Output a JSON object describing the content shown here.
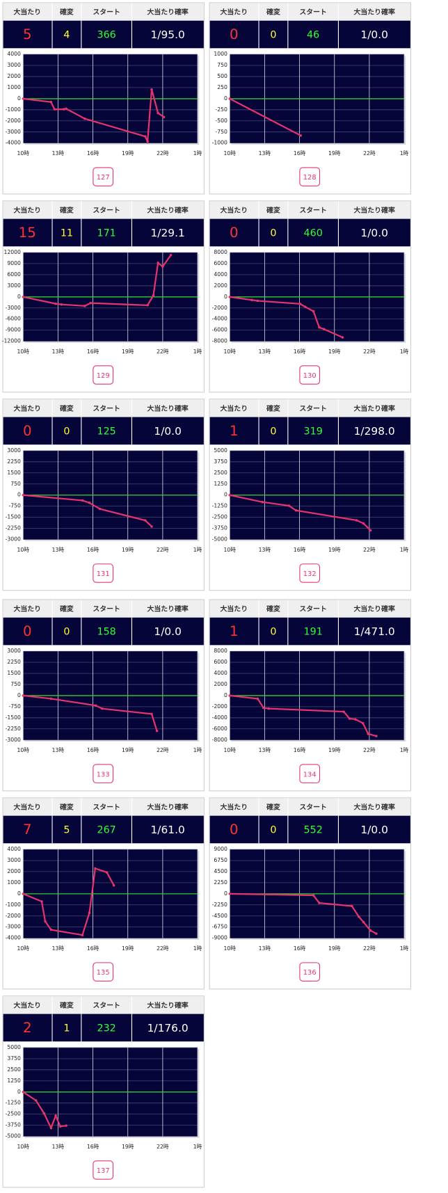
{
  "headers": [
    "大当たり",
    "確変",
    "スタート",
    "大当たり確率"
  ],
  "panels": [
    {
      "stats": [
        "5",
        "4",
        "366",
        "1/95.0"
      ],
      "machine": "127"
    },
    {
      "stats": [
        "0",
        "0",
        "46",
        "1/0.0"
      ],
      "machine": "128"
    },
    {
      "stats": [
        "15",
        "11",
        "171",
        "1/29.1"
      ],
      "machine": "129"
    },
    {
      "stats": [
        "0",
        "0",
        "460",
        "1/0.0"
      ],
      "machine": "130"
    },
    {
      "stats": [
        "0",
        "0",
        "125",
        "1/0.0"
      ],
      "machine": "131"
    },
    {
      "stats": [
        "1",
        "0",
        "319",
        "1/298.0"
      ],
      "machine": "132"
    },
    {
      "stats": [
        "0",
        "0",
        "158",
        "1/0.0"
      ],
      "machine": "133"
    },
    {
      "stats": [
        "1",
        "0",
        "191",
        "1/471.0"
      ],
      "machine": "134"
    },
    {
      "stats": [
        "7",
        "5",
        "267",
        "1/61.0"
      ],
      "machine": "135"
    },
    {
      "stats": [
        "0",
        "0",
        "552",
        "1/0.0"
      ],
      "machine": "136"
    },
    {
      "stats": [
        "2",
        "1",
        "232",
        "1/176.0"
      ],
      "machine": "137"
    }
  ],
  "chart_data": [
    {
      "type": "line",
      "x": [
        10,
        12.4,
        12.7,
        13.5,
        13.7,
        15.3,
        20.5,
        20.7,
        21.05,
        21.6,
        22.1
      ],
      "values": [
        0,
        -300,
        -950,
        -950,
        -900,
        -1800,
        -3400,
        -3850,
        830,
        -1300,
        -1650
      ],
      "color": "#e8336d",
      "zero_line": "#33cc33",
      "xlim": [
        10,
        25
      ],
      "ylim": [
        -4000,
        4000
      ],
      "xticks": [
        {
          "value": 10,
          "label": "10時"
        },
        {
          "value": 13,
          "label": "13時"
        },
        {
          "value": 16,
          "label": "16時"
        },
        {
          "value": 19,
          "label": "19時"
        },
        {
          "value": 22,
          "label": "22時"
        },
        {
          "value": 25,
          "label": "1時"
        }
      ],
      "yticks": [
        4000,
        3000,
        2000,
        1000,
        0,
        -1000,
        -2000,
        -3000,
        -4000
      ],
      "grid": true
    },
    {
      "type": "line",
      "x": [
        10,
        16.1
      ],
      "values": [
        0,
        -830
      ],
      "color": "#e8336d",
      "zero_line": "#33cc33",
      "xlim": [
        10,
        25
      ],
      "ylim": [
        -1000,
        1000
      ],
      "xticks": [
        {
          "value": 10,
          "label": "10時"
        },
        {
          "value": 13,
          "label": "13時"
        },
        {
          "value": 16,
          "label": "16時"
        },
        {
          "value": 19,
          "label": "19時"
        },
        {
          "value": 22,
          "label": "22時"
        },
        {
          "value": 25,
          "label": "1時"
        }
      ],
      "yticks": [
        1000,
        750,
        500,
        250,
        0,
        -250,
        -500,
        -750,
        -1000
      ],
      "grid": true
    },
    {
      "type": "line",
      "x": [
        10,
        12.8,
        13.3,
        15.3,
        15.8,
        20.7,
        21.2,
        21.6,
        22.0,
        22.7
      ],
      "values": [
        0,
        -1850,
        -2050,
        -2450,
        -1650,
        -2250,
        400,
        9200,
        8200,
        11300
      ],
      "color": "#e8336d",
      "zero_line": "#33cc33",
      "xlim": [
        10,
        25
      ],
      "ylim": [
        -12000,
        12000
      ],
      "xticks": [
        {
          "value": 10,
          "label": "10時"
        },
        {
          "value": 13,
          "label": "13時"
        },
        {
          "value": 16,
          "label": "16時"
        },
        {
          "value": 19,
          "label": "19時"
        },
        {
          "value": 22,
          "label": "22時"
        },
        {
          "value": 25,
          "label": "1時"
        }
      ],
      "yticks": [
        12000,
        9000,
        6000,
        3000,
        0,
        -3000,
        -6000,
        -9000,
        -12000
      ],
      "grid": true
    },
    {
      "type": "line",
      "x": [
        10,
        11.9,
        12.4,
        16.05,
        16.5,
        17.2,
        17.7,
        18.1,
        19.7
      ],
      "values": [
        0,
        -550,
        -700,
        -1250,
        -1800,
        -2600,
        -5500,
        -5800,
        -7300
      ],
      "color": "#e8336d",
      "zero_line": "#33cc33",
      "xlim": [
        10,
        25
      ],
      "ylim": [
        -8000,
        8000
      ],
      "xticks": [
        {
          "value": 10,
          "label": "10時"
        },
        {
          "value": 13,
          "label": "13時"
        },
        {
          "value": 16,
          "label": "16時"
        },
        {
          "value": 19,
          "label": "19時"
        },
        {
          "value": 22,
          "label": "22時"
        },
        {
          "value": 25,
          "label": "1時"
        }
      ],
      "yticks": [
        8000,
        6000,
        4000,
        2000,
        0,
        -2000,
        -4000,
        -6000,
        -8000
      ],
      "grid": true
    },
    {
      "type": "line",
      "x": [
        10,
        15.1,
        15.7,
        16.6,
        20.5,
        21.05
      ],
      "values": [
        0,
        -360,
        -520,
        -930,
        -1710,
        -2120
      ],
      "color": "#e8336d",
      "zero_line": "#33cc33",
      "xlim": [
        10,
        25
      ],
      "ylim": [
        -3000,
        3000
      ],
      "xticks": [
        {
          "value": 10,
          "label": "10時"
        },
        {
          "value": 13,
          "label": "13時"
        },
        {
          "value": 16,
          "label": "16時"
        },
        {
          "value": 19,
          "label": "19時"
        },
        {
          "value": 22,
          "label": "22時"
        },
        {
          "value": 25,
          "label": "1時"
        }
      ],
      "yticks": [
        3000,
        2250,
        1500,
        750,
        0,
        -750,
        -1500,
        -2250,
        -3000
      ],
      "grid": true
    },
    {
      "type": "line",
      "x": [
        10,
        12.8,
        15.1,
        15.7,
        20.9,
        21.5,
        22.1
      ],
      "values": [
        0,
        -780,
        -1200,
        -1720,
        -2840,
        -3190,
        -3970
      ],
      "color": "#e8336d",
      "zero_line": "#33cc33",
      "xlim": [
        10,
        25
      ],
      "ylim": [
        -5000,
        5000
      ],
      "xticks": [
        {
          "value": 10,
          "label": "10時"
        },
        {
          "value": 13,
          "label": "13時"
        },
        {
          "value": 16,
          "label": "16時"
        },
        {
          "value": 19,
          "label": "19時"
        },
        {
          "value": 22,
          "label": "22時"
        },
        {
          "value": 25,
          "label": "1時"
        }
      ],
      "yticks": [
        5000,
        3750,
        2500,
        1250,
        0,
        -1250,
        -2500,
        -3750,
        -5000
      ],
      "grid": true
    },
    {
      "type": "line",
      "x": [
        10,
        12.4,
        16.25,
        16.8,
        21.05,
        21.5
      ],
      "values": [
        0,
        -210,
        -670,
        -880,
        -1240,
        -2380
      ],
      "color": "#e8336d",
      "zero_line": "#33cc33",
      "xlim": [
        10,
        25
      ],
      "ylim": [
        -3000,
        3000
      ],
      "xticks": [
        {
          "value": 10,
          "label": "10時"
        },
        {
          "value": 13,
          "label": "13時"
        },
        {
          "value": 16,
          "label": "16時"
        },
        {
          "value": 19,
          "label": "19時"
        },
        {
          "value": 22,
          "label": "22時"
        },
        {
          "value": 25,
          "label": "1時"
        }
      ],
      "yticks": [
        3000,
        2250,
        1500,
        750,
        0,
        -750,
        -1500,
        -2250,
        -3000
      ],
      "grid": true
    },
    {
      "type": "line",
      "x": [
        10,
        12.4,
        12.9,
        13.35,
        19.8,
        20.3,
        20.8,
        21.45,
        21.9,
        22.6
      ],
      "values": [
        0,
        -550,
        -2200,
        -2340,
        -2900,
        -4140,
        -4280,
        -4970,
        -6900,
        -7300
      ],
      "color": "#e8336d",
      "zero_line": "#33cc33",
      "xlim": [
        10,
        25
      ],
      "ylim": [
        -8000,
        8000
      ],
      "xticks": [
        {
          "value": 10,
          "label": "10時"
        },
        {
          "value": 13,
          "label": "13時"
        },
        {
          "value": 16,
          "label": "16時"
        },
        {
          "value": 19,
          "label": "19時"
        },
        {
          "value": 22,
          "label": "22時"
        },
        {
          "value": 25,
          "label": "1時"
        }
      ],
      "yticks": [
        8000,
        6000,
        4000,
        2000,
        0,
        -2000,
        -4000,
        -6000,
        -8000
      ],
      "grid": true
    },
    {
      "type": "line",
      "x": [
        10,
        11.6,
        11.9,
        12.4,
        15.1,
        15.7,
        16.2,
        17.2,
        17.8
      ],
      "values": [
        0,
        -690,
        -2480,
        -3240,
        -3720,
        -1720,
        2280,
        1930,
        760
      ],
      "color": "#e8336d",
      "zero_line": "#33cc33",
      "xlim": [
        10,
        25
      ],
      "ylim": [
        -4000,
        4000
      ],
      "xticks": [
        {
          "value": 10,
          "label": "10時"
        },
        {
          "value": 13,
          "label": "13時"
        },
        {
          "value": 16,
          "label": "16時"
        },
        {
          "value": 19,
          "label": "19時"
        },
        {
          "value": 22,
          "label": "22時"
        },
        {
          "value": 25,
          "label": "1時"
        }
      ],
      "yticks": [
        4000,
        3000,
        2000,
        1000,
        0,
        -1000,
        -2000,
        -3000,
        -4000
      ],
      "grid": true
    },
    {
      "type": "line",
      "x": [
        10,
        17.2,
        17.7,
        20.5,
        21.1,
        21.5,
        22.1,
        22.6
      ],
      "values": [
        0,
        -310,
        -1860,
        -2480,
        -4660,
        -5740,
        -7450,
        -8070
      ],
      "color": "#e8336d",
      "zero_line": "#33cc33",
      "xlim": [
        10,
        25
      ],
      "ylim": [
        -9000,
        9000
      ],
      "xticks": [
        {
          "value": 10,
          "label": "10時"
        },
        {
          "value": 13,
          "label": "13時"
        },
        {
          "value": 16,
          "label": "16時"
        },
        {
          "value": 19,
          "label": "19時"
        },
        {
          "value": 22,
          "label": "22時"
        },
        {
          "value": 25,
          "label": "1時"
        }
      ],
      "yticks": [
        9000,
        6750,
        4500,
        2250,
        0,
        -2250,
        -4500,
        -6750,
        -9000
      ],
      "grid": true
    },
    {
      "type": "line",
      "x": [
        10,
        11.1,
        11.8,
        12.4,
        12.8,
        13.2,
        13.7
      ],
      "values": [
        0,
        -950,
        -2410,
        -4050,
        -2670,
        -3880,
        -3790
      ],
      "color": "#e8336d",
      "zero_line": "#33cc33",
      "xlim": [
        10,
        25
      ],
      "ylim": [
        -5000,
        5000
      ],
      "xticks": [
        {
          "value": 10,
          "label": "10時"
        },
        {
          "value": 13,
          "label": "13時"
        },
        {
          "value": 16,
          "label": "16時"
        },
        {
          "value": 19,
          "label": "19時"
        },
        {
          "value": 22,
          "label": "22時"
        },
        {
          "value": 25,
          "label": "1時"
        }
      ],
      "yticks": [
        5000,
        3750,
        2500,
        1250,
        0,
        -1250,
        -2500,
        -3750,
        -5000
      ],
      "grid": true
    }
  ]
}
